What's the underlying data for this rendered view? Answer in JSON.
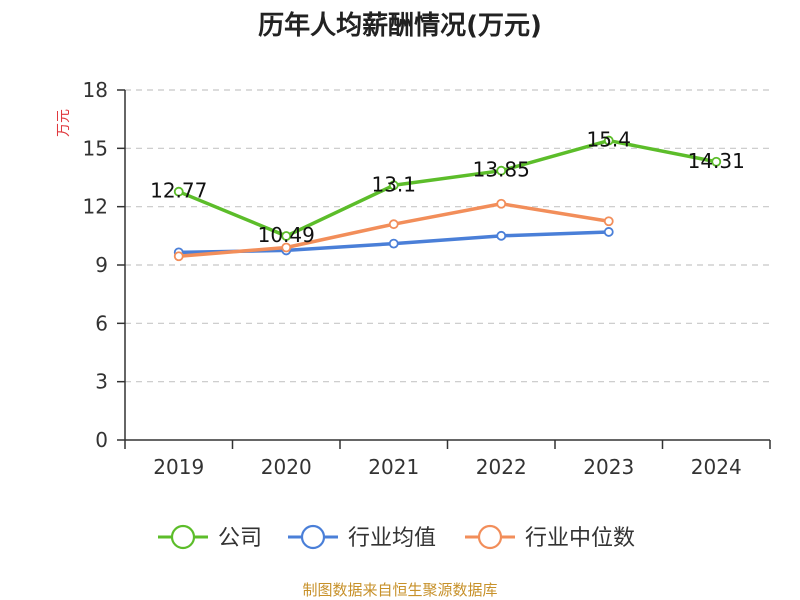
{
  "chart_data": {
    "type": "line",
    "title": "历年人均薪酬情况(万元)",
    "ylabel": "万元",
    "xlabel": "",
    "categories": [
      "2019",
      "2020",
      "2021",
      "2022",
      "2023",
      "2024"
    ],
    "ylim": [
      0,
      18
    ],
    "yticks": [
      0,
      3,
      6,
      9,
      12,
      15,
      18
    ],
    "grid": true,
    "legend_position": "bottom",
    "series": [
      {
        "name": "公司",
        "color": "#5cbd2a",
        "values": [
          12.77,
          10.49,
          13.1,
          13.85,
          15.4,
          14.31
        ],
        "labels": [
          "12.77",
          "10.49",
          "13.1",
          "13.85",
          "15.4",
          "14.31"
        ]
      },
      {
        "name": "行业均值",
        "color": "#4a7fd8",
        "values": [
          9.65,
          9.75,
          10.1,
          10.5,
          10.7,
          null
        ],
        "labels": []
      },
      {
        "name": "行业中位数",
        "color": "#f28e5a",
        "values": [
          9.45,
          9.9,
          11.1,
          12.15,
          11.25,
          null
        ],
        "labels": []
      }
    ],
    "source": "制图数据来自恒生聚源数据库"
  }
}
